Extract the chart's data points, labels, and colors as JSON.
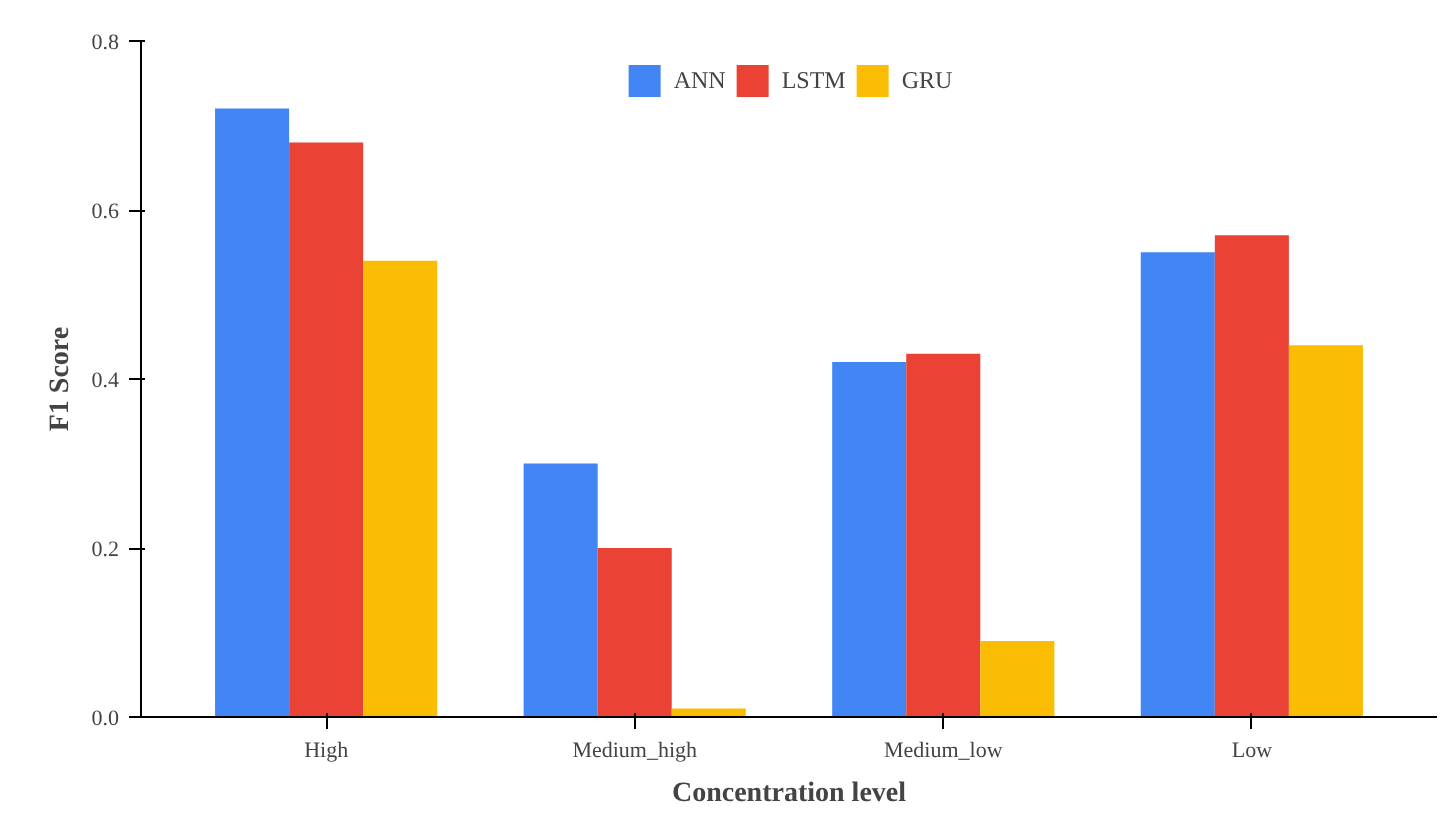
{
  "chart_data": {
    "type": "bar",
    "xlabel": "Concentration level",
    "ylabel": "F1 Score",
    "categories": [
      "High",
      "Medium_high",
      "Medium_low",
      "Low"
    ],
    "series": [
      {
        "name": "ANN",
        "color": "#4285f4",
        "values": [
          0.72,
          0.3,
          0.42,
          0.55
        ]
      },
      {
        "name": "LSTM",
        "color": "#ea4335",
        "values": [
          0.68,
          0.2,
          0.43,
          0.57
        ]
      },
      {
        "name": "GRU",
        "color": "#fbbc04",
        "values": [
          0.54,
          0.01,
          0.09,
          0.44
        ]
      }
    ],
    "ylim": [
      0,
      0.8
    ],
    "yticks": [
      {
        "value": 0,
        "label": "0.0"
      },
      {
        "value": 0.2,
        "label": "0.2"
      },
      {
        "value": 0.4,
        "label": "0.4"
      },
      {
        "value": 0.6,
        "label": "0.6"
      },
      {
        "value": 0.8,
        "label": "0.8"
      }
    ],
    "grid": false,
    "legend": "top"
  }
}
